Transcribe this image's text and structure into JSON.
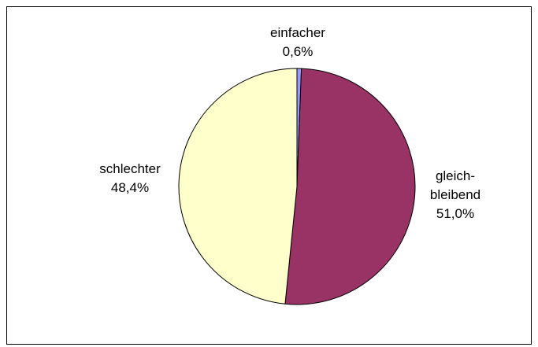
{
  "chart_data": {
    "type": "pie",
    "categories": [
      "einfacher",
      "gleich-\nbleibend",
      "schlechter"
    ],
    "values": [
      0.6,
      51.0,
      48.4
    ],
    "value_labels": [
      "0,6%",
      "51,0%",
      "48,4%"
    ],
    "colors": [
      "#9999ff",
      "#993366",
      "#ffffcc"
    ]
  }
}
